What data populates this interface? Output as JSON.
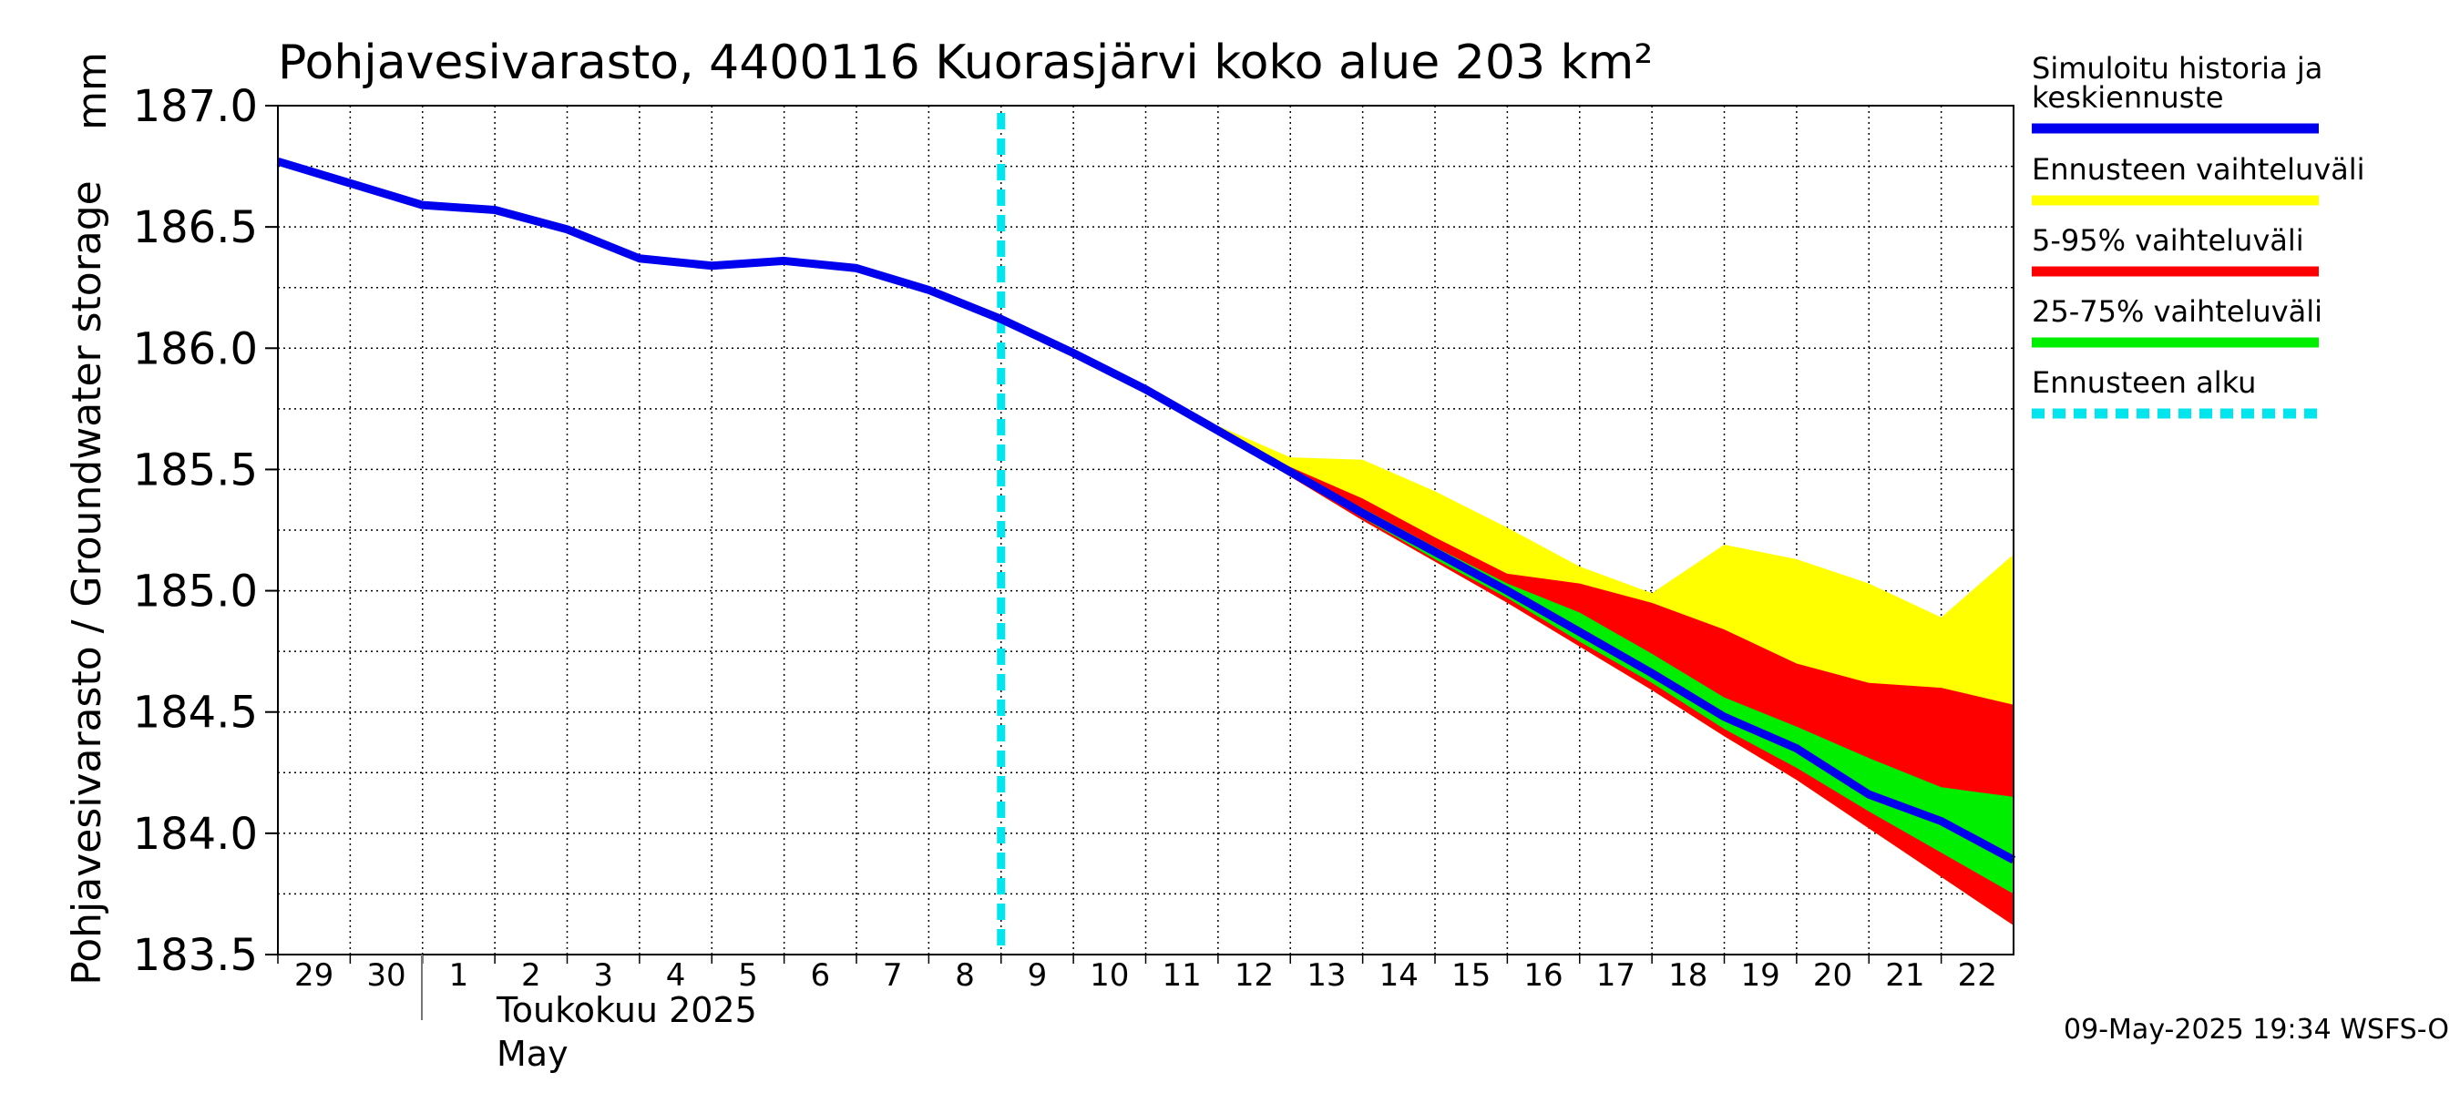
{
  "chart_data": {
    "type": "area",
    "title": "Pohjavesivarasto, 4400116 Kuorasjärvi koko alue 203 km²",
    "ylabel": "Pohjavesivarasto / Groundwater storage",
    "yunit": "mm",
    "ylim": [
      183.5,
      187.0
    ],
    "yticks": [
      "187.0",
      "186.5",
      "186.0",
      "185.5",
      "185.0",
      "184.5",
      "184.0",
      "183.5"
    ],
    "xlim": [
      "2025-04-29",
      "2025-05-23"
    ],
    "x_tick_labels": [
      "29",
      "30",
      "1",
      "2",
      "3",
      "4",
      "5",
      "6",
      "7",
      "8",
      "9",
      "10",
      "11",
      "12",
      "13",
      "14",
      "15",
      "16",
      "17",
      "18",
      "19",
      "20",
      "21",
      "22"
    ],
    "x_axis_month_label": "Toukokuu  2025",
    "x_axis_month_label_en": "May",
    "grid": true,
    "forecast_start": "2025-05-09",
    "series": [
      {
        "name": "Simuloitu historia ja keskiennuste",
        "color": "#0000ee",
        "x": [
          "2025-04-29",
          "2025-04-30",
          "2025-05-01",
          "2025-05-02",
          "2025-05-03",
          "2025-05-04",
          "2025-05-05",
          "2025-05-06",
          "2025-05-07",
          "2025-05-08",
          "2025-05-09",
          "2025-05-10",
          "2025-05-11",
          "2025-05-12",
          "2025-05-13",
          "2025-05-14",
          "2025-05-15",
          "2025-05-16",
          "2025-05-17",
          "2025-05-18",
          "2025-05-19",
          "2025-05-20",
          "2025-05-21",
          "2025-05-22",
          "2025-05-23"
        ],
        "y": [
          186.77,
          186.68,
          186.59,
          186.57,
          186.49,
          186.37,
          186.34,
          186.36,
          186.33,
          186.24,
          186.12,
          185.98,
          185.83,
          185.66,
          185.49,
          185.32,
          185.16,
          185.0,
          184.83,
          184.66,
          184.48,
          184.35,
          184.16,
          184.05,
          183.89
        ]
      }
    ],
    "bands": [
      {
        "name": "Ennusteen vaihteluväli",
        "color": "#ffff00",
        "x": [
          "2025-05-12",
          "2025-05-13",
          "2025-05-14",
          "2025-05-15",
          "2025-05-16",
          "2025-05-17",
          "2025-05-18",
          "2025-05-19",
          "2025-05-20",
          "2025-05-21",
          "2025-05-22",
          "2025-05-23"
        ],
        "upper": [
          185.68,
          185.55,
          185.54,
          185.41,
          185.26,
          185.1,
          184.99,
          185.19,
          185.13,
          185.03,
          184.89,
          185.15
        ],
        "lower": [
          185.65,
          185.47,
          185.29,
          185.12,
          184.95,
          184.77,
          184.59,
          184.4,
          184.22,
          184.02,
          183.82,
          183.62
        ]
      },
      {
        "name": "5-95% vaihteluväli",
        "color": "#ff0000",
        "x": [
          "2025-05-12",
          "2025-05-13",
          "2025-05-14",
          "2025-05-15",
          "2025-05-16",
          "2025-05-17",
          "2025-05-18",
          "2025-05-19",
          "2025-05-20",
          "2025-05-21",
          "2025-05-22",
          "2025-05-23"
        ],
        "upper": [
          185.67,
          185.51,
          185.38,
          185.22,
          185.07,
          185.03,
          184.95,
          184.84,
          184.7,
          184.62,
          184.6,
          184.53
        ],
        "lower": [
          185.65,
          185.47,
          185.29,
          185.12,
          184.95,
          184.77,
          184.59,
          184.4,
          184.22,
          184.02,
          183.82,
          183.62
        ]
      },
      {
        "name": "25-75% vaihteluväli",
        "color": "#00ee00",
        "x": [
          "2025-05-12",
          "2025-05-13",
          "2025-05-14",
          "2025-05-15",
          "2025-05-16",
          "2025-05-17",
          "2025-05-18",
          "2025-05-19",
          "2025-05-20",
          "2025-05-21",
          "2025-05-22",
          "2025-05-23"
        ],
        "upper": [
          185.66,
          185.5,
          185.34,
          185.18,
          185.03,
          184.91,
          184.74,
          184.56,
          184.44,
          184.31,
          184.19,
          184.15
        ],
        "lower": [
          185.65,
          185.48,
          185.3,
          185.13,
          184.97,
          184.79,
          184.62,
          184.43,
          184.27,
          184.09,
          183.92,
          183.75
        ]
      }
    ],
    "legend": {
      "placement": "right",
      "items": [
        {
          "label": "Simuloitu historia ja keskiennuste",
          "color": "#0000ee",
          "style": "solid"
        },
        {
          "label": "Ennusteen vaihteluväli",
          "color": "#ffff00",
          "style": "solid"
        },
        {
          "label": "5-95% vaihteluväli",
          "color": "#ff0000",
          "style": "solid"
        },
        {
          "label": "25-75% vaihteluväli",
          "color": "#00ee00",
          "style": "solid"
        },
        {
          "label": "Ennusteen alku",
          "color": "#00e5ee",
          "style": "dashed"
        }
      ]
    },
    "timestamp": "09-May-2025 19:34 WSFS-O"
  }
}
